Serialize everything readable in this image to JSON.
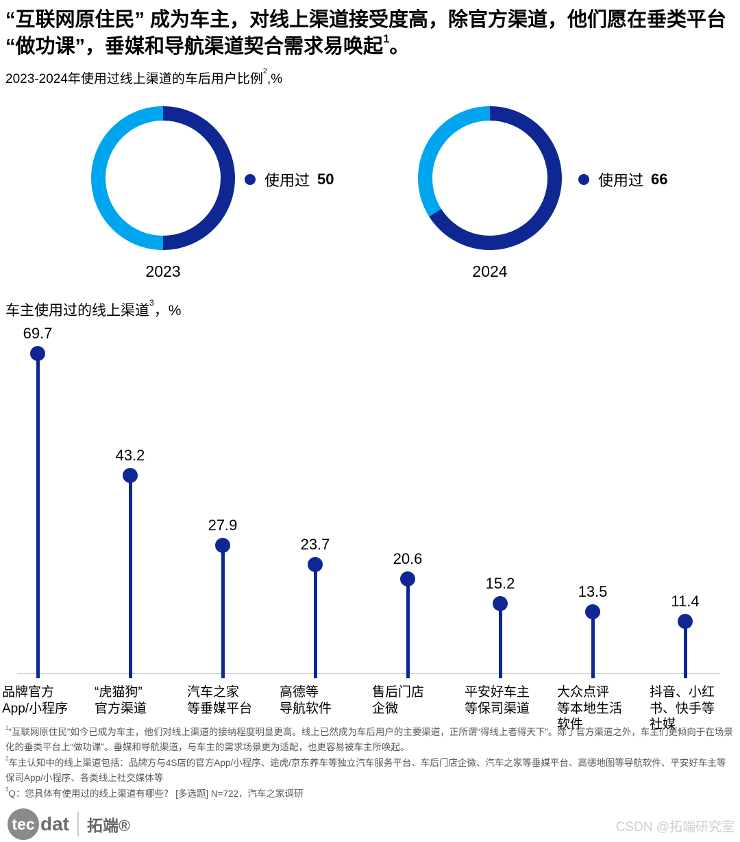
{
  "colors": {
    "navy": "#0e2793",
    "cyan": "#00a5ef",
    "baseline": "#d9d9d9"
  },
  "header": {
    "title_text": "“互联网原住民” 成为车主，对线上渠道接受度高，除官方渠道，他们愿在垂类平台 “做功课”，垂媒和导航渠道契合需求易唤起",
    "title_sup": "1",
    "title_suffix": "。",
    "subtitle_text": "2023-2024年使用过线上渠道的车后用户比例",
    "subtitle_sup": "2",
    "subtitle_suffix": ",%"
  },
  "lollipop_header": {
    "text": "车主使用过的线上渠道",
    "sup": "3",
    "suffix": "，%"
  },
  "chart_data": [
    {
      "type": "pie",
      "variant": "donut",
      "title": "2023",
      "slices": [
        {
          "label": "使用过",
          "value": 50,
          "color": "#0e2793"
        },
        {
          "label": "",
          "value": 50,
          "color": "#00a5ef"
        }
      ],
      "legend": {
        "label": "使用过",
        "value": "50"
      }
    },
    {
      "type": "pie",
      "variant": "donut",
      "title": "2024",
      "slices": [
        {
          "label": "使用过",
          "value": 66,
          "color": "#0e2793"
        },
        {
          "label": "",
          "value": 34,
          "color": "#00a5ef"
        }
      ],
      "legend": {
        "label": "使用过",
        "value": "66"
      }
    },
    {
      "type": "lollipop",
      "title": "车主使用过的线上渠道³，%",
      "categories": [
        "品牌官方\nApp/小程序",
        "“虎猫狗”\n官方渠道",
        "汽车之家\n等垂媒平台",
        "高德等\n导航软件",
        "售后门店\n企微",
        "平安好车主\n等保司渠道",
        "大众点评\n等本地生活\n软件",
        "抖音、小红\n书、快手等\n社媒"
      ],
      "values": [
        69.7,
        43.2,
        27.9,
        23.7,
        20.6,
        15.2,
        13.5,
        11.4
      ],
      "ylim": [
        0,
        75
      ],
      "color": "#0e2793",
      "baseline_color": "#d9d9d9",
      "grid": false,
      "legend_position": "none"
    }
  ],
  "footnotes": [
    {
      "sup": "1",
      "text": "“互联网原住民”如今已成为车主，他们对线上渠道的接纳程度明显更高。线上已然成为车后用户的主要渠道，正所谓“得线上者得天下”。除了官方渠道之外，车主们更倾向于在场景化的垂类平台上“做功课”。垂媒和导航渠道，与车主的需求场景更为适配，也更容易被车主所唤起。"
    },
    {
      "sup": "2",
      "text": "车主认知中的线上渠道包括：品牌方与4S店的官方App/小程序、途虎/京东养车等独立汽车服务平台、车后门店企微、汽车之家等垂媒平台、高德地图等导航软件、平安好车主等保司App/小程序、各类线上社交媒体等"
    },
    {
      "sup": "3",
      "text": "Q：您具体有使用过的线上渠道有哪些？ [多选题] N=722，汽车之家调研"
    }
  ],
  "footer": {
    "logo_tec": "tec",
    "logo_dat": "dat",
    "logo_cn": "拓端®",
    "watermark": "CSDN @拓端研究室"
  }
}
